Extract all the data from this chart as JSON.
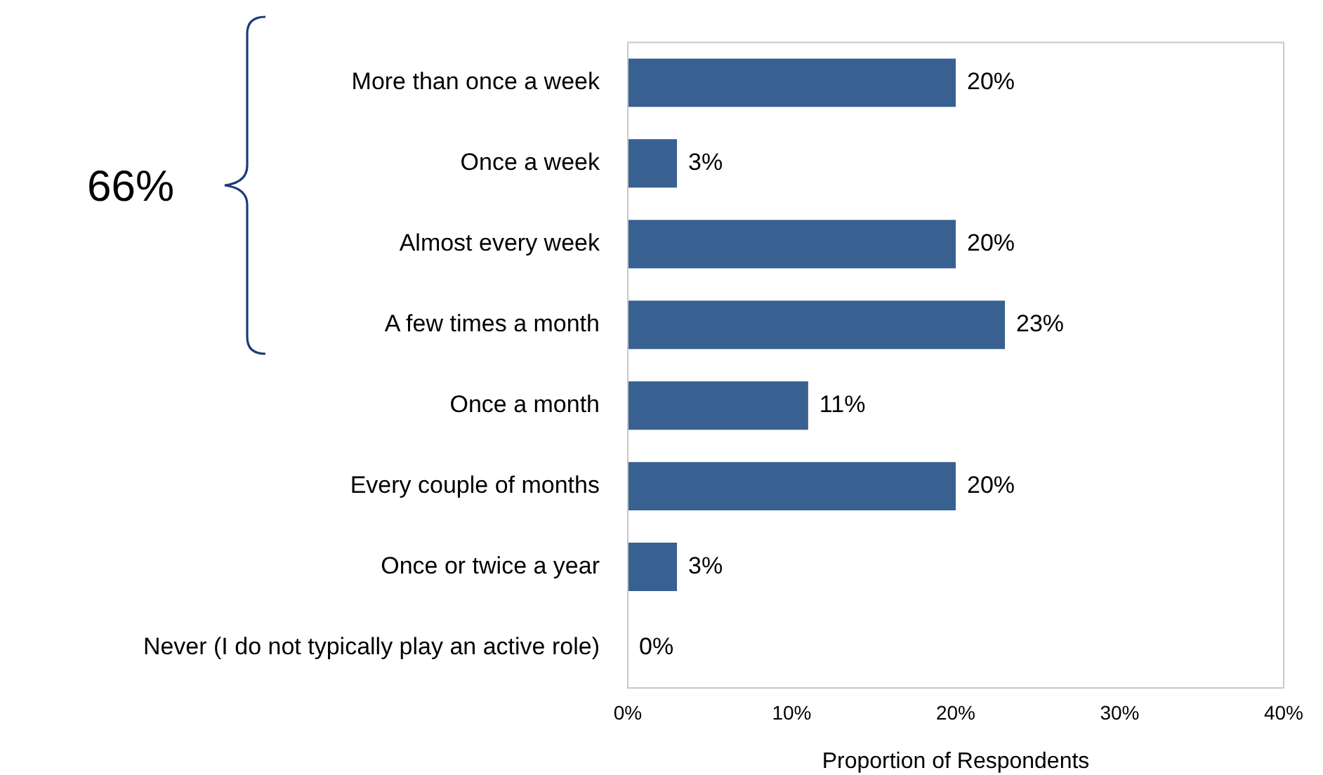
{
  "chart_data": {
    "type": "bar",
    "orientation": "horizontal",
    "xlabel": "Proportion of Respondents",
    "categories": [
      "More than once a week",
      "Once a week",
      "Almost every week",
      "A few times a month",
      "Once a month",
      "Every couple of months",
      "Once or twice a year",
      "Never (I do not typically play an active role)"
    ],
    "values": [
      20,
      3,
      20,
      23,
      11,
      20,
      3,
      0
    ],
    "value_labels": [
      "20%",
      "3%",
      "20%",
      "23%",
      "11%",
      "20%",
      "3%",
      "0%"
    ],
    "color": "#386192",
    "xlim": [
      0,
      40
    ],
    "xticks": [
      {
        "value": 0,
        "label": "0%"
      },
      {
        "value": 10,
        "label": "10%"
      },
      {
        "value": 20,
        "label": "20%"
      },
      {
        "value": 30,
        "label": "30%"
      },
      {
        "value": 40,
        "label": "40%"
      }
    ],
    "grid": false,
    "legend": false,
    "annotations": [
      "66%"
    ]
  }
}
